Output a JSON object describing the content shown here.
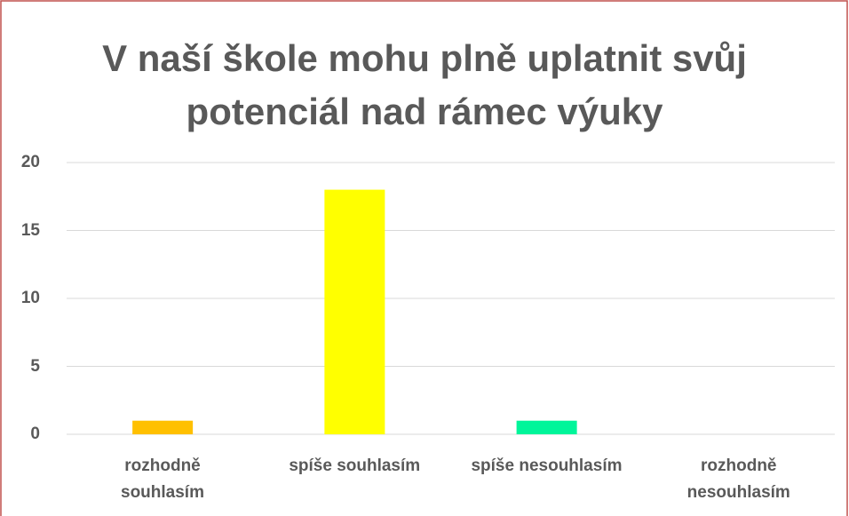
{
  "chart_data": {
    "type": "bar",
    "title": "V naší škole mohu plně uplatnit svůj\npotenciál nad rámec výuky",
    "categories": [
      "rozhodně\nsouhlasím",
      "spíše souhlasím",
      "spíše nesouhlasím",
      "rozhodně\nnesouhlasím"
    ],
    "values": [
      1,
      18,
      1,
      0
    ],
    "colors": [
      "#ffc000",
      "#ffff00",
      "#00f59a",
      "#5b9bd5"
    ],
    "ylim": [
      0,
      20
    ],
    "yticks": [
      0,
      5,
      10,
      15,
      20
    ],
    "grid": true
  }
}
